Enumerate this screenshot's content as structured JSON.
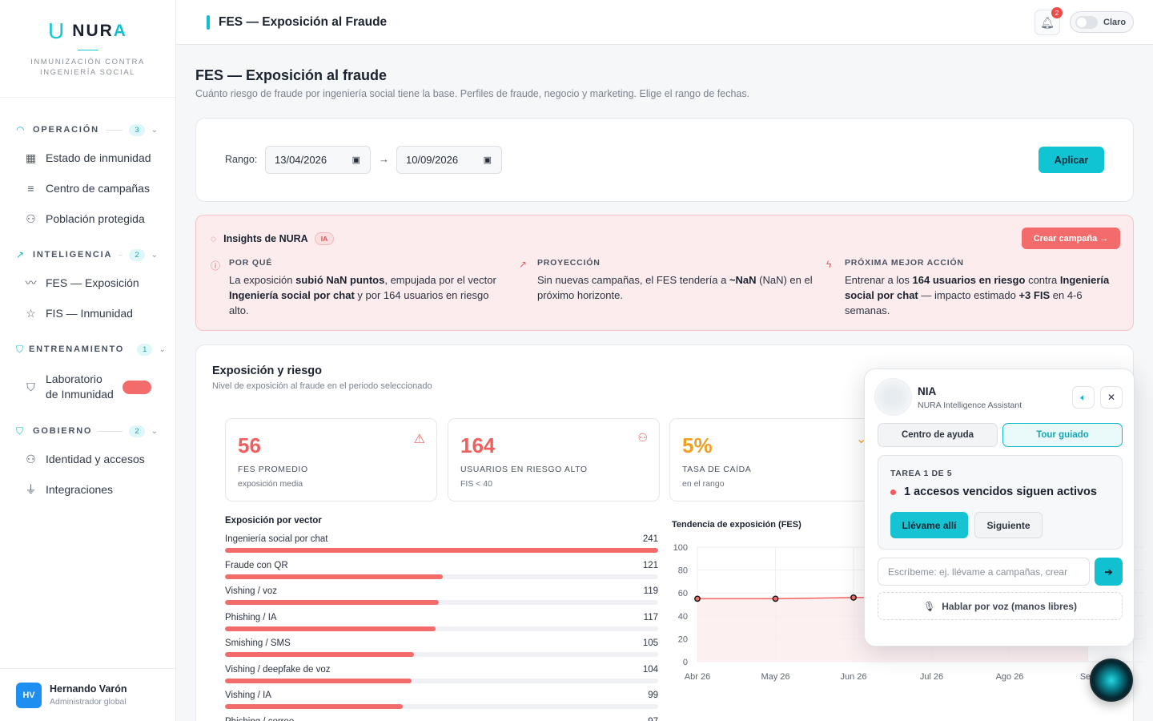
{
  "brand": {
    "name_prefix": "NUR",
    "name_suffix": "A",
    "tagline": "INMUNIZACIÓN CONTRA INGENIERÍA SOCIAL"
  },
  "sidebar": {
    "groups": [
      {
        "title": "OPERACIÓN",
        "count": "3",
        "items": [
          "Estado de inmunidad",
          "Centro de campañas",
          "Población protegida"
        ]
      },
      {
        "title": "INTELIGENCIA",
        "count": "2",
        "items": [
          "FES — Exposición",
          "FIS — Inmunidad"
        ]
      },
      {
        "title": "ENTRENAMIENTO",
        "count": "1",
        "items": [
          "Laboratorio de Inmunidad"
        ]
      },
      {
        "title": "GOBIERNO",
        "count": "2",
        "items": [
          "Identidad y accesos",
          "Integraciones"
        ]
      }
    ],
    "user": {
      "initials": "HV",
      "name": "Hernando Varón",
      "role": "Administrador global"
    }
  },
  "topbar": {
    "title": "FES — Exposición al Fraude",
    "notifications": "2",
    "theme_label": "Claro"
  },
  "page": {
    "title": "FES — Exposición al fraude",
    "subtitle": "Cuánto riesgo de fraude por ingeniería social tiene la base. Perfiles de fraude, negocio y marketing. Elige el rango de fechas."
  },
  "range": {
    "label": "Rango:",
    "from": "13/04/2026",
    "to": "10/09/2026",
    "apply": "Aplicar"
  },
  "insights": {
    "title": "Insights de NURA",
    "badge": "IA",
    "cta": "Crear campaña →",
    "why_h": "POR QUÉ",
    "why_1": "La exposición ",
    "why_2": "subió NaN puntos",
    "why_3": ", empujada por el vector ",
    "why_4": "Ingeniería social por chat",
    "why_5": " y por 164 usuarios en riesgo alto.",
    "proj_h": "PROYECCIÓN",
    "proj_1": "Sin nuevas campañas, el FES tendería a ",
    "proj_2": "~NaN",
    "proj_3": " (NaN) en el próximo horizonte.",
    "next_h": "PRÓXIMA MEJOR ACCIÓN",
    "next_1": "Entrenar a los ",
    "next_2": "164 usuarios en riesgo",
    "next_3": " contra ",
    "next_4": "Ingeniería social por chat",
    "next_5": " — impacto estimado ",
    "next_6": "+3 FIS",
    "next_7": " en 4-6 semanas."
  },
  "exposure": {
    "title": "Exposición y riesgo",
    "subtitle": "Nivel de exposición al fraude en el periodo seleccionado",
    "kpis": [
      {
        "value": "56",
        "label": "FES PROMEDIO",
        "sub": "exposición media",
        "color": "#ef5f5f"
      },
      {
        "value": "164",
        "label": "USUARIOS EN RIESGO ALTO",
        "sub": "FIS < 40",
        "color": "#ef5f5f"
      },
      {
        "value": "5%",
        "label": "TASA DE CAÍDA",
        "sub": "en el rango",
        "color": "#f0a020"
      }
    ],
    "vectors_title": "Exposición por vector",
    "vectors": [
      {
        "name": "Ingeniería social por chat",
        "value": "241"
      },
      {
        "name": "Fraude con QR",
        "value": "121"
      },
      {
        "name": "Vishing / voz",
        "value": "119"
      },
      {
        "name": "Phishing / IA",
        "value": "117"
      },
      {
        "name": "Smishing / SMS",
        "value": "105"
      },
      {
        "name": "Vishing / deepfake de voz",
        "value": "104"
      },
      {
        "name": "Vishing / IA",
        "value": "99"
      },
      {
        "name": "Phishing / correo",
        "value": "97"
      }
    ]
  },
  "chart_data": {
    "type": "area",
    "title": "Tendencia de exposición (FES)",
    "categories": [
      "Abr 26",
      "May 26",
      "Jun 26",
      "Jul 26",
      "Ago 26",
      "Sep"
    ],
    "series": [
      {
        "values": [
          55,
          55,
          56,
          57,
          57,
          57
        ]
      }
    ],
    "ylim": [
      0,
      100
    ],
    "yticks": [
      "0",
      "20",
      "40",
      "60",
      "80",
      "100"
    ],
    "grid": true,
    "colors": {
      "line": "#f36b6b",
      "fill": "#fdecee"
    }
  },
  "nia": {
    "name": "NIA",
    "subtitle": "NURA Intelligence Assistant",
    "tab_help": "Centro de ayuda",
    "tab_tour": "Tour guiado",
    "task_label": "TAREA 1 DE 5",
    "task_title": "1 accesos vencidos siguen activos",
    "go": "Llévame allí",
    "next": "Siguiente",
    "input_placeholder": "Escríbeme: ej. llévame a campañas, crear",
    "voice": "Hablar por voz (manos libres)"
  }
}
